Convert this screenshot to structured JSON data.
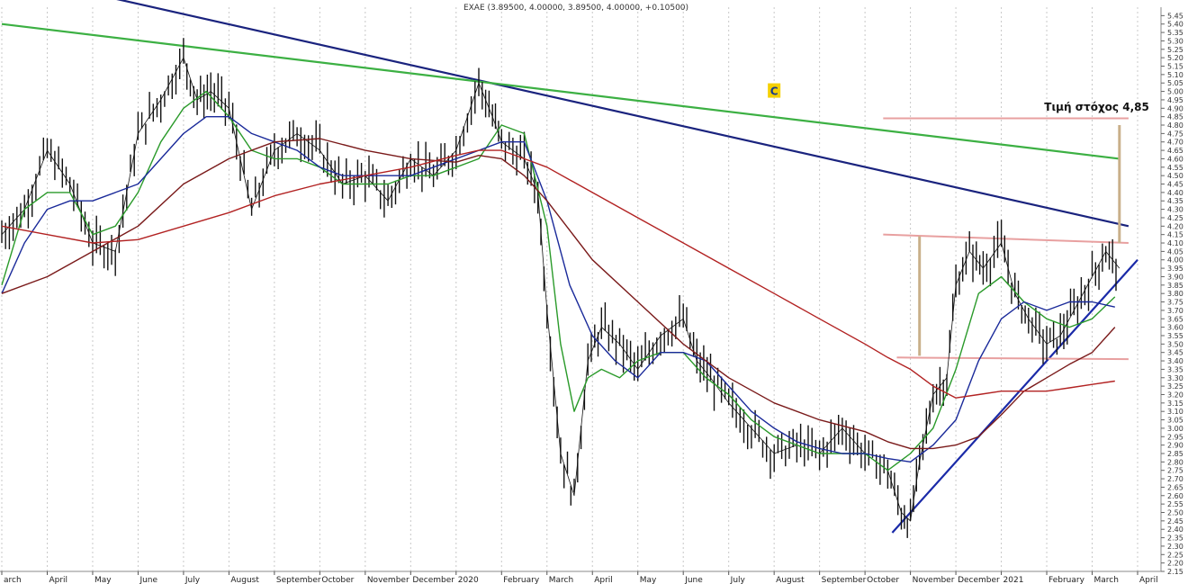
{
  "chart_data": {
    "type": "line",
    "title": "EXAE (3.89500, 4.00000, 3.89500, 4.00000, +0.10500)",
    "subtitle": "",
    "xlabel": "",
    "ylabel": "",
    "ylim": [
      2.15,
      5.5
    ],
    "y_ticks": [
      2.15,
      2.2,
      2.25,
      2.3,
      2.35,
      2.4,
      2.45,
      2.5,
      2.55,
      2.6,
      2.65,
      2.7,
      2.75,
      2.8,
      2.85,
      2.9,
      2.95,
      3.0,
      3.05,
      3.1,
      3.15,
      3.2,
      3.25,
      3.3,
      3.35,
      3.4,
      3.45,
      3.5,
      3.55,
      3.6,
      3.65,
      3.7,
      3.75,
      3.8,
      3.85,
      3.9,
      3.95,
      4.0,
      4.05,
      4.1,
      4.15,
      4.2,
      4.25,
      4.3,
      4.35,
      4.4,
      4.45,
      4.5,
      4.55,
      4.6,
      4.65,
      4.7,
      4.75,
      4.8,
      4.85,
      4.9,
      4.95,
      5.0,
      5.05,
      5.1,
      5.15,
      5.2,
      5.25,
      5.3,
      5.35,
      5.4,
      5.45
    ],
    "y_tick_labels": [
      "2.15",
      "2.20",
      "2.25",
      "2.30",
      "2.35",
      "2.40",
      "2.45",
      "2.50",
      "2.55",
      "2.60",
      "2.65",
      "2.70",
      "2.75",
      "2.80",
      "2.85",
      "2.90",
      "2.95",
      "3.00",
      "3.05",
      "3.10",
      "3.15",
      "3.20",
      "3.25",
      "3.30",
      "3.35",
      "3.40",
      "3.45",
      "3.50",
      "3.55",
      "3.60",
      "3.65",
      "3.70",
      "3.75",
      "3.80",
      "3.85",
      "3.90",
      "3.95",
      "4.00",
      "4.05",
      "4.10",
      "4.15",
      "4.20",
      "4.25",
      "4.30",
      "4.35",
      "4.40",
      "4.45",
      "4.50",
      "4.55",
      "4.60",
      "4.65",
      "4.70",
      "4.75",
      "4.80",
      "4.85",
      "4.90",
      "4.95",
      "5.00",
      "5.05",
      "5.10",
      "5.15",
      "5.20",
      "5.25",
      "5.30",
      "5.35",
      "5.40",
      "5.45"
    ],
    "x_range": [
      0,
      25
    ],
    "months": [
      {
        "label": "arch",
        "x": 0
      },
      {
        "label": "April",
        "x": 1
      },
      {
        "label": "May",
        "x": 2
      },
      {
        "label": "June",
        "x": 3
      },
      {
        "label": "July",
        "x": 4
      },
      {
        "label": "August",
        "x": 5
      },
      {
        "label": "September",
        "x": 6
      },
      {
        "label": "October",
        "x": 7
      },
      {
        "label": "November",
        "x": 8
      },
      {
        "label": "December",
        "x": 9
      },
      {
        "label": "2020",
        "x": 10
      },
      {
        "label": "February",
        "x": 11
      },
      {
        "label": "March",
        "x": 12
      },
      {
        "label": "April",
        "x": 13
      },
      {
        "label": "May",
        "x": 14
      },
      {
        "label": "June",
        "x": 15
      },
      {
        "label": "July",
        "x": 16
      },
      {
        "label": "August",
        "x": 17
      },
      {
        "label": "September",
        "x": 18
      },
      {
        "label": "October",
        "x": 19
      },
      {
        "label": "November",
        "x": 20
      },
      {
        "label": "December",
        "x": 21
      },
      {
        "label": "2021",
        "x": 22
      },
      {
        "label": "February",
        "x": 23
      },
      {
        "label": "March",
        "x": 24
      },
      {
        "label": "April",
        "x": 25
      }
    ],
    "price": {
      "x": [
        0,
        0.5,
        1,
        1.5,
        2,
        2.5,
        3,
        3.5,
        4,
        4.3,
        4.6,
        5,
        5.5,
        6,
        6.5,
        7,
        7.5,
        8,
        8.5,
        9,
        9.5,
        10,
        10.5,
        10.8,
        11,
        11.5,
        11.8,
        12,
        12.3,
        12.6,
        12.9,
        13.2,
        13.6,
        14,
        14.5,
        15,
        15.3,
        15.6,
        16,
        16.5,
        17,
        17.5,
        18,
        18.5,
        19,
        19.5,
        19.8,
        20,
        20.2,
        20.5,
        20.8,
        21,
        21.3,
        21.6,
        22,
        22.3,
        22.6,
        23,
        23.3,
        23.6,
        24,
        24.3,
        24.6
      ],
      "y": [
        4.15,
        4.3,
        4.65,
        4.45,
        4.1,
        4.05,
        4.75,
        4.95,
        5.2,
        4.95,
        5.0,
        4.9,
        4.3,
        4.65,
        4.75,
        4.65,
        4.45,
        4.5,
        4.35,
        4.6,
        4.5,
        4.65,
        5.05,
        4.85,
        4.7,
        4.6,
        4.4,
        3.7,
        2.85,
        2.6,
        3.4,
        3.6,
        3.5,
        3.35,
        3.55,
        3.65,
        3.4,
        3.3,
        3.15,
        3.0,
        2.85,
        2.9,
        2.85,
        3.0,
        2.85,
        2.75,
        2.5,
        2.45,
        2.8,
        3.2,
        3.3,
        3.85,
        4.05,
        3.95,
        4.1,
        3.8,
        3.65,
        3.5,
        3.55,
        3.7,
        3.9,
        4.05,
        3.95
      ]
    },
    "moving_averages": [
      {
        "color": "#2a9a2a",
        "x": [
          0,
          0.5,
          1,
          1.5,
          2,
          2.5,
          3,
          3.5,
          4,
          4.5,
          5,
          5.5,
          6,
          6.5,
          7,
          7.5,
          8,
          8.5,
          9,
          9.5,
          10,
          10.5,
          11,
          11.5,
          12,
          12.3,
          12.6,
          12.9,
          13.2,
          13.6,
          14,
          14.5,
          15,
          15.5,
          16,
          16.5,
          17,
          17.5,
          18,
          18.5,
          19,
          19.5,
          20,
          20.5,
          21,
          21.5,
          22,
          22.5,
          23,
          23.5,
          24,
          24.5
        ],
        "y": [
          3.85,
          4.3,
          4.4,
          4.4,
          4.15,
          4.2,
          4.4,
          4.7,
          4.9,
          5.0,
          4.85,
          4.65,
          4.6,
          4.6,
          4.55,
          4.45,
          4.45,
          4.45,
          4.5,
          4.5,
          4.55,
          4.6,
          4.8,
          4.75,
          4.2,
          3.5,
          3.1,
          3.3,
          3.35,
          3.3,
          3.4,
          3.45,
          3.45,
          3.3,
          3.2,
          3.05,
          2.95,
          2.9,
          2.85,
          2.85,
          2.85,
          2.75,
          2.85,
          3.0,
          3.35,
          3.8,
          3.9,
          3.75,
          3.65,
          3.6,
          3.65,
          3.78
        ]
      },
      {
        "color": "#1a2a9a",
        "x": [
          0,
          0.5,
          1,
          1.5,
          2,
          2.5,
          3,
          3.5,
          4,
          4.5,
          5,
          5.5,
          6,
          6.5,
          7,
          7.5,
          8,
          8.5,
          9,
          9.5,
          10,
          10.5,
          11,
          11.5,
          12,
          12.5,
          13,
          13.5,
          14,
          14.5,
          15,
          15.5,
          16,
          16.5,
          17,
          17.5,
          18,
          18.5,
          19,
          19.5,
          20,
          20.5,
          21,
          21.5,
          22,
          22.5,
          23,
          23.5,
          24,
          24.5
        ],
        "y": [
          3.8,
          4.1,
          4.3,
          4.35,
          4.35,
          4.4,
          4.45,
          4.6,
          4.75,
          4.85,
          4.85,
          4.75,
          4.7,
          4.65,
          4.55,
          4.5,
          4.5,
          4.5,
          4.5,
          4.55,
          4.6,
          4.65,
          4.7,
          4.7,
          4.35,
          3.85,
          3.55,
          3.4,
          3.3,
          3.45,
          3.45,
          3.4,
          3.25,
          3.1,
          3.0,
          2.92,
          2.88,
          2.85,
          2.85,
          2.82,
          2.8,
          2.9,
          3.05,
          3.4,
          3.65,
          3.75,
          3.7,
          3.75,
          3.75,
          3.72
        ]
      },
      {
        "color": "#7a1a1a",
        "x": [
          0,
          1,
          2,
          3,
          4,
          5,
          6,
          7,
          8,
          9,
          10,
          10.5,
          11,
          11.5,
          12,
          13,
          14,
          15,
          16,
          17,
          18,
          19,
          19.5,
          20,
          20.5,
          21,
          21.5,
          22,
          22.5,
          23,
          23.5,
          24,
          24.5
        ],
        "y": [
          3.8,
          3.9,
          4.05,
          4.2,
          4.45,
          4.6,
          4.7,
          4.72,
          4.65,
          4.6,
          4.58,
          4.62,
          4.6,
          4.5,
          4.35,
          4.0,
          3.75,
          3.5,
          3.3,
          3.15,
          3.05,
          2.98,
          2.92,
          2.88,
          2.88,
          2.9,
          2.95,
          3.08,
          3.22,
          3.3,
          3.38,
          3.45,
          3.6
        ]
      },
      {
        "color": "#b22222",
        "x": [
          0,
          1,
          2,
          3,
          4,
          5,
          6,
          7,
          8,
          9,
          10,
          10.5,
          11,
          11.5,
          12,
          13,
          14,
          15,
          16,
          17,
          18,
          19,
          19.5,
          20,
          20.5,
          21,
          21.5,
          22,
          22.5,
          23,
          23.5,
          24,
          24.5
        ],
        "y": [
          4.2,
          4.15,
          4.1,
          4.12,
          4.2,
          4.28,
          4.38,
          4.45,
          4.5,
          4.55,
          4.62,
          4.65,
          4.65,
          4.6,
          4.55,
          4.4,
          4.25,
          4.1,
          3.95,
          3.8,
          3.65,
          3.5,
          3.42,
          3.35,
          3.25,
          3.18,
          3.2,
          3.22,
          3.22,
          3.22,
          3.24,
          3.26,
          3.28
        ]
      }
    ],
    "trendlines": [
      {
        "name": "resistance-blue-down",
        "color": "#1a237e",
        "x": [
          2.5,
          24.8
        ],
        "y": [
          5.55,
          4.2
        ]
      },
      {
        "name": "resistance-green-down",
        "color": "#3cb043",
        "x": [
          0,
          24.6
        ],
        "y": [
          5.4,
          4.6
        ]
      },
      {
        "name": "support-blue-up",
        "color": "#1a2aa8",
        "x": [
          19.6,
          25
        ],
        "y": [
          2.38,
          4.0
        ]
      },
      {
        "name": "target-level",
        "color": "#e8a0a0",
        "x": [
          19.4,
          24.8
        ],
        "y": [
          4.84,
          4.84
        ]
      },
      {
        "name": "range-top",
        "color": "#e8a0a0",
        "x": [
          19.4,
          24.8
        ],
        "y": [
          4.15,
          4.1
        ]
      },
      {
        "name": "range-bottom",
        "color": "#e8a0a0",
        "x": [
          19.7,
          24.8
        ],
        "y": [
          3.42,
          3.41
        ]
      }
    ],
    "verticals": [
      {
        "color": "#c9b08a",
        "x": 20.2,
        "y": [
          3.43,
          4.14
        ]
      },
      {
        "color": "#c9b08a",
        "x": 24.6,
        "y": [
          4.1,
          4.8
        ]
      }
    ],
    "annotations": {
      "target_text": "Τιμή στόχος 4,85",
      "badge": "C"
    }
  }
}
